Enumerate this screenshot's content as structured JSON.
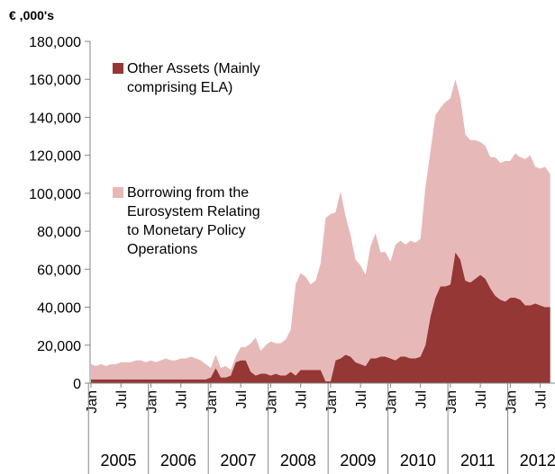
{
  "chart_data": {
    "type": "stacked-area",
    "y_axis_title": "€ ,000's",
    "categories": [
      "Jan",
      null,
      null,
      null,
      null,
      null,
      "Jul",
      null,
      null,
      null,
      null,
      null,
      "Jan",
      null,
      null,
      null,
      null,
      null,
      "Jul",
      null,
      null,
      null,
      null,
      null,
      "Jan",
      null,
      null,
      null,
      null,
      null,
      "Jul",
      null,
      null,
      null,
      null,
      null,
      "Jan",
      null,
      null,
      null,
      null,
      null,
      "Jul",
      null,
      null,
      null,
      null,
      null,
      "Jan",
      null,
      null,
      null,
      null,
      null,
      "Jul",
      null,
      null,
      null,
      null,
      null,
      "Jan",
      null,
      null,
      null,
      null,
      null,
      "Jul",
      null,
      null,
      null,
      null,
      null,
      "Jan",
      null,
      null,
      null,
      null,
      null,
      "Jul",
      null,
      null,
      null,
      null,
      null,
      "Jan",
      null,
      null,
      null,
      null,
      null,
      "Jul",
      null,
      null
    ],
    "x_groups": [
      "2005",
      "2006",
      "2007",
      "2008",
      "2009",
      "2010",
      "2011",
      "2012"
    ],
    "series": [
      {
        "name": "Other Assets (Mainly comprising ELA)",
        "color": "#953735",
        "values": [
          2000,
          2000,
          2000,
          2000,
          2000,
          2000,
          2000,
          2000,
          2000,
          2000,
          2000,
          2000,
          2000,
          2000,
          2000,
          2000,
          2000,
          2000,
          2000,
          2000,
          2000,
          2000,
          2000,
          2000,
          3000,
          8000,
          3000,
          3000,
          4000,
          11000,
          12000,
          12000,
          6000,
          4000,
          5000,
          5000,
          4000,
          5000,
          4000,
          4000,
          6000,
          4000,
          7000,
          7000,
          7000,
          7000,
          7000,
          1000,
          1000,
          12000,
          13000,
          15000,
          14000,
          11000,
          10000,
          9000,
          13000,
          13000,
          14000,
          14000,
          13000,
          12000,
          14000,
          14000,
          13000,
          13000,
          14000,
          20000,
          35000,
          45000,
          51000,
          51000,
          52000,
          69000,
          65000,
          54000,
          53000,
          55000,
          57000,
          55000,
          50000,
          46000,
          44000,
          43000,
          45000,
          45000,
          44000,
          41000,
          41000,
          42000,
          41000,
          40000,
          40000
        ]
      },
      {
        "name": "Borrowing from the Eurosystem Relating to Monetary Policy Operations",
        "color": "#e6b9b8",
        "values": [
          8000,
          7000,
          8000,
          7000,
          8000,
          8000,
          9000,
          9000,
          9000,
          10000,
          10000,
          9000,
          10000,
          9000,
          10000,
          11000,
          10000,
          10000,
          11000,
          11000,
          12000,
          11000,
          10000,
          8000,
          5000,
          7000,
          5000,
          6000,
          3000,
          3000,
          7000,
          7000,
          15000,
          20000,
          12000,
          15000,
          18000,
          16000,
          17000,
          19000,
          22000,
          48000,
          51000,
          49000,
          45000,
          47000,
          56000,
          86000,
          88000,
          78000,
          88000,
          73000,
          64000,
          54000,
          52000,
          48000,
          59000,
          66000,
          55000,
          55000,
          51000,
          61000,
          61000,
          59000,
          62000,
          61000,
          62000,
          83000,
          87000,
          96000,
          94000,
          97000,
          98000,
          91000,
          85000,
          77000,
          75000,
          73000,
          70000,
          70000,
          69000,
          73000,
          72000,
          74000,
          72000,
          76000,
          75000,
          77000,
          79000,
          72000,
          72000,
          74000,
          70000
        ]
      }
    ],
    "ylim": [
      0,
      180000
    ],
    "yticks": [
      0,
      {
        "value": 20000,
        "label": "20,000"
      },
      {
        "value": 40000,
        "label": "40,000"
      },
      {
        "value": 60000,
        "label": "60,000"
      },
      {
        "value": 80000,
        "label": "80,000"
      },
      {
        "value": 100000,
        "label": "100,000"
      },
      {
        "value": 120000,
        "label": "120,000"
      },
      {
        "value": 140000,
        "label": "140,000"
      },
      {
        "value": 160000,
        "label": "160,000"
      },
      {
        "value": 180000,
        "label": "180,000"
      }
    ],
    "grid": false
  }
}
